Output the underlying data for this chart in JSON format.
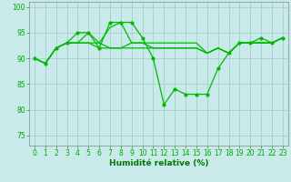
{
  "x": [
    0,
    1,
    2,
    3,
    4,
    5,
    6,
    7,
    8,
    9,
    10,
    11,
    12,
    13,
    14,
    15,
    16,
    17,
    18,
    19,
    20,
    21,
    22,
    23
  ],
  "lines": [
    [
      90,
      89,
      92,
      93,
      95,
      95,
      92,
      97,
      97,
      97,
      94,
      90,
      81,
      84,
      83,
      83,
      83,
      88,
      91,
      93,
      93,
      94,
      93,
      94
    ],
    [
      90,
      89,
      92,
      93,
      93,
      93,
      92,
      92,
      92,
      92,
      92,
      92,
      92,
      92,
      92,
      92,
      91,
      92,
      91,
      93,
      93,
      93,
      93,
      94
    ],
    [
      90,
      89,
      92,
      93,
      93,
      93,
      93,
      92,
      92,
      93,
      93,
      93,
      93,
      93,
      93,
      93,
      91,
      92,
      91,
      93,
      93,
      93,
      93,
      94
    ],
    [
      90,
      89,
      92,
      93,
      93,
      95,
      93,
      96,
      97,
      93,
      93,
      92,
      92,
      92,
      92,
      92,
      91,
      92,
      91,
      93,
      93,
      93,
      93,
      94
    ]
  ],
  "markers_line": 0,
  "line_color": "#00bb00",
  "bg_color": "#c8eaea",
  "grid_color": "#aacccc",
  "xlabel": "Humidité relative (%)",
  "ylim": [
    73,
    101
  ],
  "yticks": [
    75,
    80,
    85,
    90,
    95,
    100
  ],
  "xlim": [
    -0.5,
    23.5
  ],
  "xticks": [
    0,
    1,
    2,
    3,
    4,
    5,
    6,
    7,
    8,
    9,
    10,
    11,
    12,
    13,
    14,
    15,
    16,
    17,
    18,
    19,
    20,
    21,
    22,
    23
  ],
  "xlabel_fontsize": 6.5,
  "tick_fontsize": 5.5,
  "tick_color": "#00aa00",
  "label_color": "#007700"
}
